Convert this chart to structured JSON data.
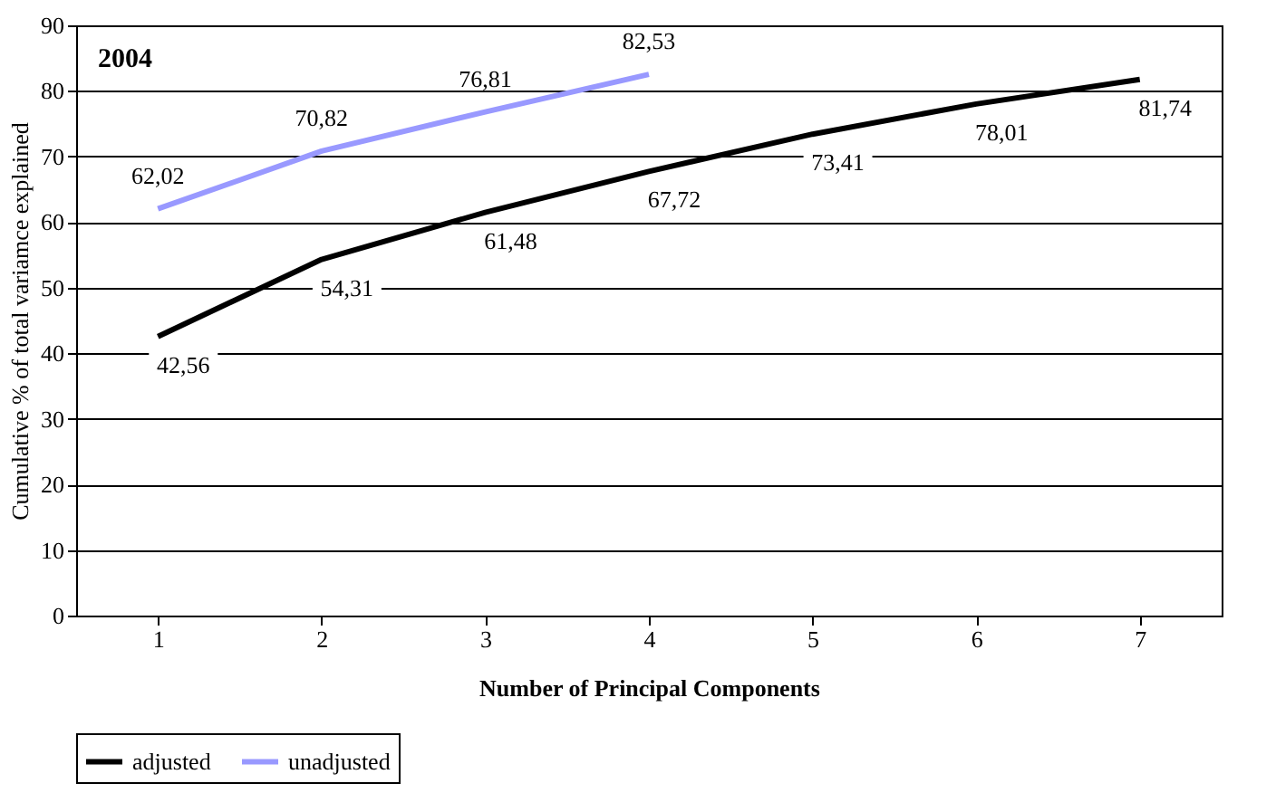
{
  "chart_data": {
    "type": "line",
    "xlabel": "Number of Principal Components",
    "ylabel": "Cumulative % of total variamce explained",
    "annotations": [
      "2004"
    ],
    "categories": [
      "1",
      "2",
      "3",
      "4",
      "5",
      "6",
      "7"
    ],
    "series": [
      {
        "name": "adjusted",
        "color": "#000000",
        "values": [
          42.56,
          54.31,
          61.48,
          67.72,
          73.41,
          78.01,
          81.74
        ],
        "value_labels": [
          "42,56",
          "54,31",
          "61,48",
          "67,72",
          "73,41",
          "78,01",
          "81,74"
        ]
      },
      {
        "name": "unadjusted",
        "color": "#9999ff",
        "values": [
          62.02,
          70.82,
          76.81,
          82.53,
          null,
          null,
          null
        ],
        "value_labels": [
          "62,02",
          "70,82",
          "76,81",
          "82,53",
          null,
          null,
          null
        ]
      }
    ],
    "ylim": [
      0,
      90
    ],
    "yticks": [
      0,
      10,
      20,
      30,
      40,
      50,
      60,
      70,
      80,
      90
    ],
    "grid": "y",
    "legend": "bottom",
    "marker": "none",
    "line_style": "solid"
  }
}
